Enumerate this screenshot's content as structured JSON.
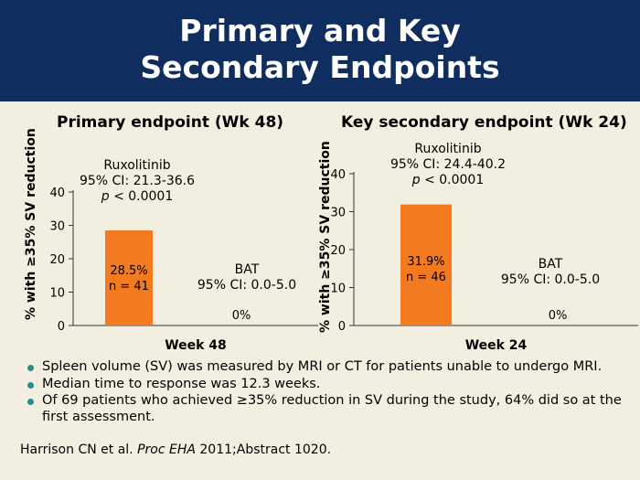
{
  "slide": {
    "title_line1": "Primary and Key",
    "title_line2": "Secondary Endpoints"
  },
  "chart_data": [
    {
      "type": "bar",
      "title": "Primary endpoint (Wk 48)",
      "xlabel": "Week 48",
      "ylabel": "% with ≥35% SV reduction",
      "ylim": [
        0,
        40
      ],
      "yticks": [
        0,
        10,
        20,
        30,
        40
      ],
      "series": [
        {
          "name": "Ruxolitinib",
          "value": 28.5,
          "label": "28.5%",
          "n": "n = 41",
          "ci": "95% CI: 21.3-36.6",
          "p_prefix": "p",
          "p_rest": " < 0.0001",
          "color": "#f47a20"
        },
        {
          "name": "BAT",
          "value": 0,
          "label": "0%",
          "ci": "95% CI: 0.0-5.0"
        }
      ]
    },
    {
      "type": "bar",
      "title": "Key secondary endpoint (Wk 24)",
      "xlabel": "Week 24",
      "ylabel": "% with ≥35% SV reduction",
      "ylim": [
        0,
        40
      ],
      "yticks": [
        0,
        10,
        20,
        30,
        40
      ],
      "series": [
        {
          "name": "Ruxolitinib",
          "value": 31.9,
          "label": "31.9%",
          "n": "n = 46",
          "ci": "95% CI: 24.4-40.2",
          "p_prefix": "p",
          "p_rest": " < 0.0001",
          "color": "#f47a20"
        },
        {
          "name": "BAT",
          "value": 0,
          "label": "0%",
          "ci": "95% CI: 0.0-5.0"
        }
      ]
    }
  ],
  "bullets": [
    "Spleen volume (SV) was measured by MRI or CT for patients unable to undergo MRI.",
    "Median time to response was 12.3 weeks.",
    "Of 69 patients who achieved ≥35% reduction in SV during the study, 64% did so at the first assessment."
  ],
  "reference": {
    "authors": "Harrison CN et al. ",
    "journal": "Proc EHA",
    "rest": " 2011;Abstract 1020."
  },
  "colors": {
    "header": "#0f2d5e",
    "background": "#f3efe0",
    "bar": "#f47a20",
    "bullet": "#2f8a8a"
  }
}
